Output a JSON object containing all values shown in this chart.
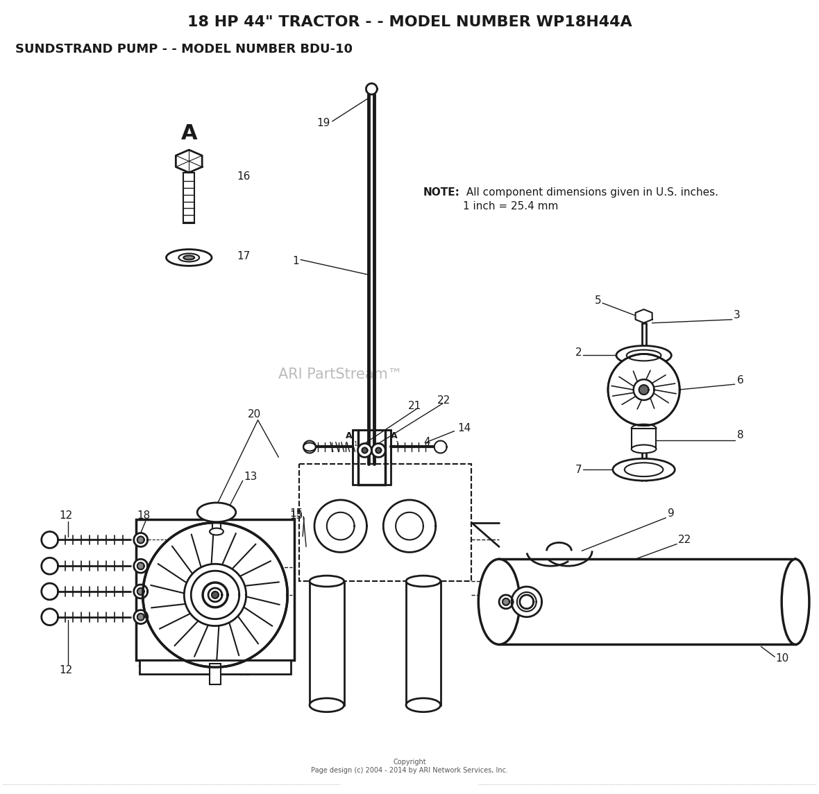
{
  "title_line1": "18 HP 44\" TRACTOR - - MODEL NUMBER WP18H44A",
  "title_line2": "SUNDSTRAND PUMP - - MODEL NUMBER BDU-10",
  "note_bold": "NOTE:",
  "note_rest": "  All component dimensions given in U.S. inches.\n         1 inch = 25.4 mm",
  "watermark": "ARI PartStream™",
  "copyright": "Copyright\nPage design (c) 2004 - 2014 by ARI Network Services, Inc.",
  "bg_color": "#ffffff",
  "line_color": "#1a1a1a",
  "text_color": "#1a1a1a",
  "watermark_color": "#bbbbbb"
}
